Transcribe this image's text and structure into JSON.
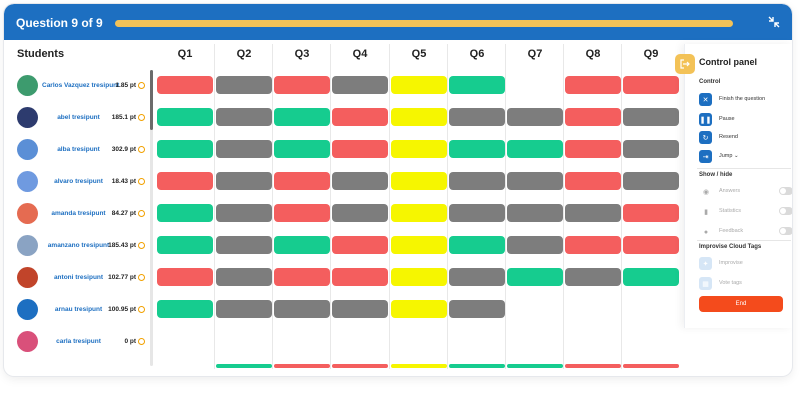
{
  "header": {
    "question_label": "Question 9 of 9",
    "progress": 1.0,
    "collapse_icon": "collapse-icon"
  },
  "students_header": "Students",
  "questions": [
    "Q1",
    "Q2",
    "Q3",
    "Q4",
    "Q5",
    "Q6",
    "Q7",
    "Q8",
    "Q9"
  ],
  "colors": {
    "red": "#f45e5e",
    "gray": "#7d7d7d",
    "green": "#16cc8f",
    "yellow": "#f6f600",
    "accent": "#1d6fc1",
    "coin": "#f2a100",
    "end": "#f44b1c"
  },
  "students": [
    {
      "name": "Carlos Vazquez tresipunt",
      "points": "1.85 pt",
      "avatar_color": "#3d9b6e",
      "answers": [
        "red",
        "gray",
        "red",
        "gray",
        "yellow",
        "green",
        "none",
        "red",
        "red"
      ]
    },
    {
      "name": "abel tresipunt",
      "points": "185.1 pt",
      "avatar_color": "#2d3b6e",
      "answers": [
        "green",
        "gray",
        "green",
        "red",
        "yellow",
        "gray",
        "gray",
        "red",
        "gray"
      ]
    },
    {
      "name": "alba tresipunt",
      "points": "302.9 pt",
      "avatar_color": "#5b8fd6",
      "answers": [
        "green",
        "gray",
        "green",
        "red",
        "yellow",
        "green",
        "green",
        "red",
        "gray"
      ]
    },
    {
      "name": "alvaro tresipunt",
      "points": "18.43 pt",
      "avatar_color": "#6f9ae0",
      "answers": [
        "red",
        "gray",
        "red",
        "gray",
        "yellow",
        "gray",
        "gray",
        "red",
        "gray"
      ]
    },
    {
      "name": "amanda tresipunt",
      "points": "84.27 pt",
      "avatar_color": "#e56b51",
      "answers": [
        "green",
        "gray",
        "red",
        "gray",
        "yellow",
        "gray",
        "gray",
        "gray",
        "red"
      ]
    },
    {
      "name": "amanzano tresipunt",
      "points": "185.43 pt",
      "avatar_color": "#8aa3c3",
      "answers": [
        "green",
        "gray",
        "green",
        "red",
        "yellow",
        "green",
        "gray",
        "red",
        "red"
      ]
    },
    {
      "name": "antoni tresipunt",
      "points": "102.77 pt",
      "avatar_color": "#c1442a",
      "answers": [
        "red",
        "gray",
        "red",
        "red",
        "yellow",
        "gray",
        "green",
        "gray",
        "green"
      ]
    },
    {
      "name": "arnau tresipunt",
      "points": "100.95 pt",
      "avatar_color": "#1d6fc1",
      "answers": [
        "green",
        "gray",
        "gray",
        "gray",
        "yellow",
        "gray",
        "none",
        "none",
        "none"
      ]
    },
    {
      "name": "carla tresipunt",
      "points": "0 pt",
      "avatar_color": "#d9507a",
      "answers": [
        "none",
        "none",
        "none",
        "none",
        "none",
        "none",
        "none",
        "none",
        "none"
      ]
    }
  ],
  "partial_row_answers": [
    "none",
    "green",
    "red",
    "red",
    "yellow",
    "green",
    "green",
    "red",
    "red"
  ],
  "control_panel": {
    "title": "Control panel",
    "panel_icon": "logout-icon",
    "control_section": "Control",
    "control_items": [
      {
        "label": "Finish the question",
        "icon": "close-icon"
      },
      {
        "label": "Pause",
        "icon": "pause-icon"
      },
      {
        "label": "Resend",
        "icon": "resend-icon"
      },
      {
        "label": "Jump",
        "icon": "jump-icon"
      }
    ],
    "show_hide_section": "Show / hide",
    "toggles": [
      {
        "label": "Answers",
        "icon": "eye-icon",
        "on": false
      },
      {
        "label": "Statistics",
        "icon": "bar-chart-icon",
        "on": false
      },
      {
        "label": "Feedback",
        "icon": "feedback-icon",
        "on": false
      }
    ],
    "cloud_section": "Improvise Cloud Tags",
    "cloud_items": [
      {
        "label": "Improvise",
        "icon": "improvise-icon"
      },
      {
        "label": "Vote tags",
        "icon": "vote-icon"
      }
    ],
    "end_label": "End"
  }
}
